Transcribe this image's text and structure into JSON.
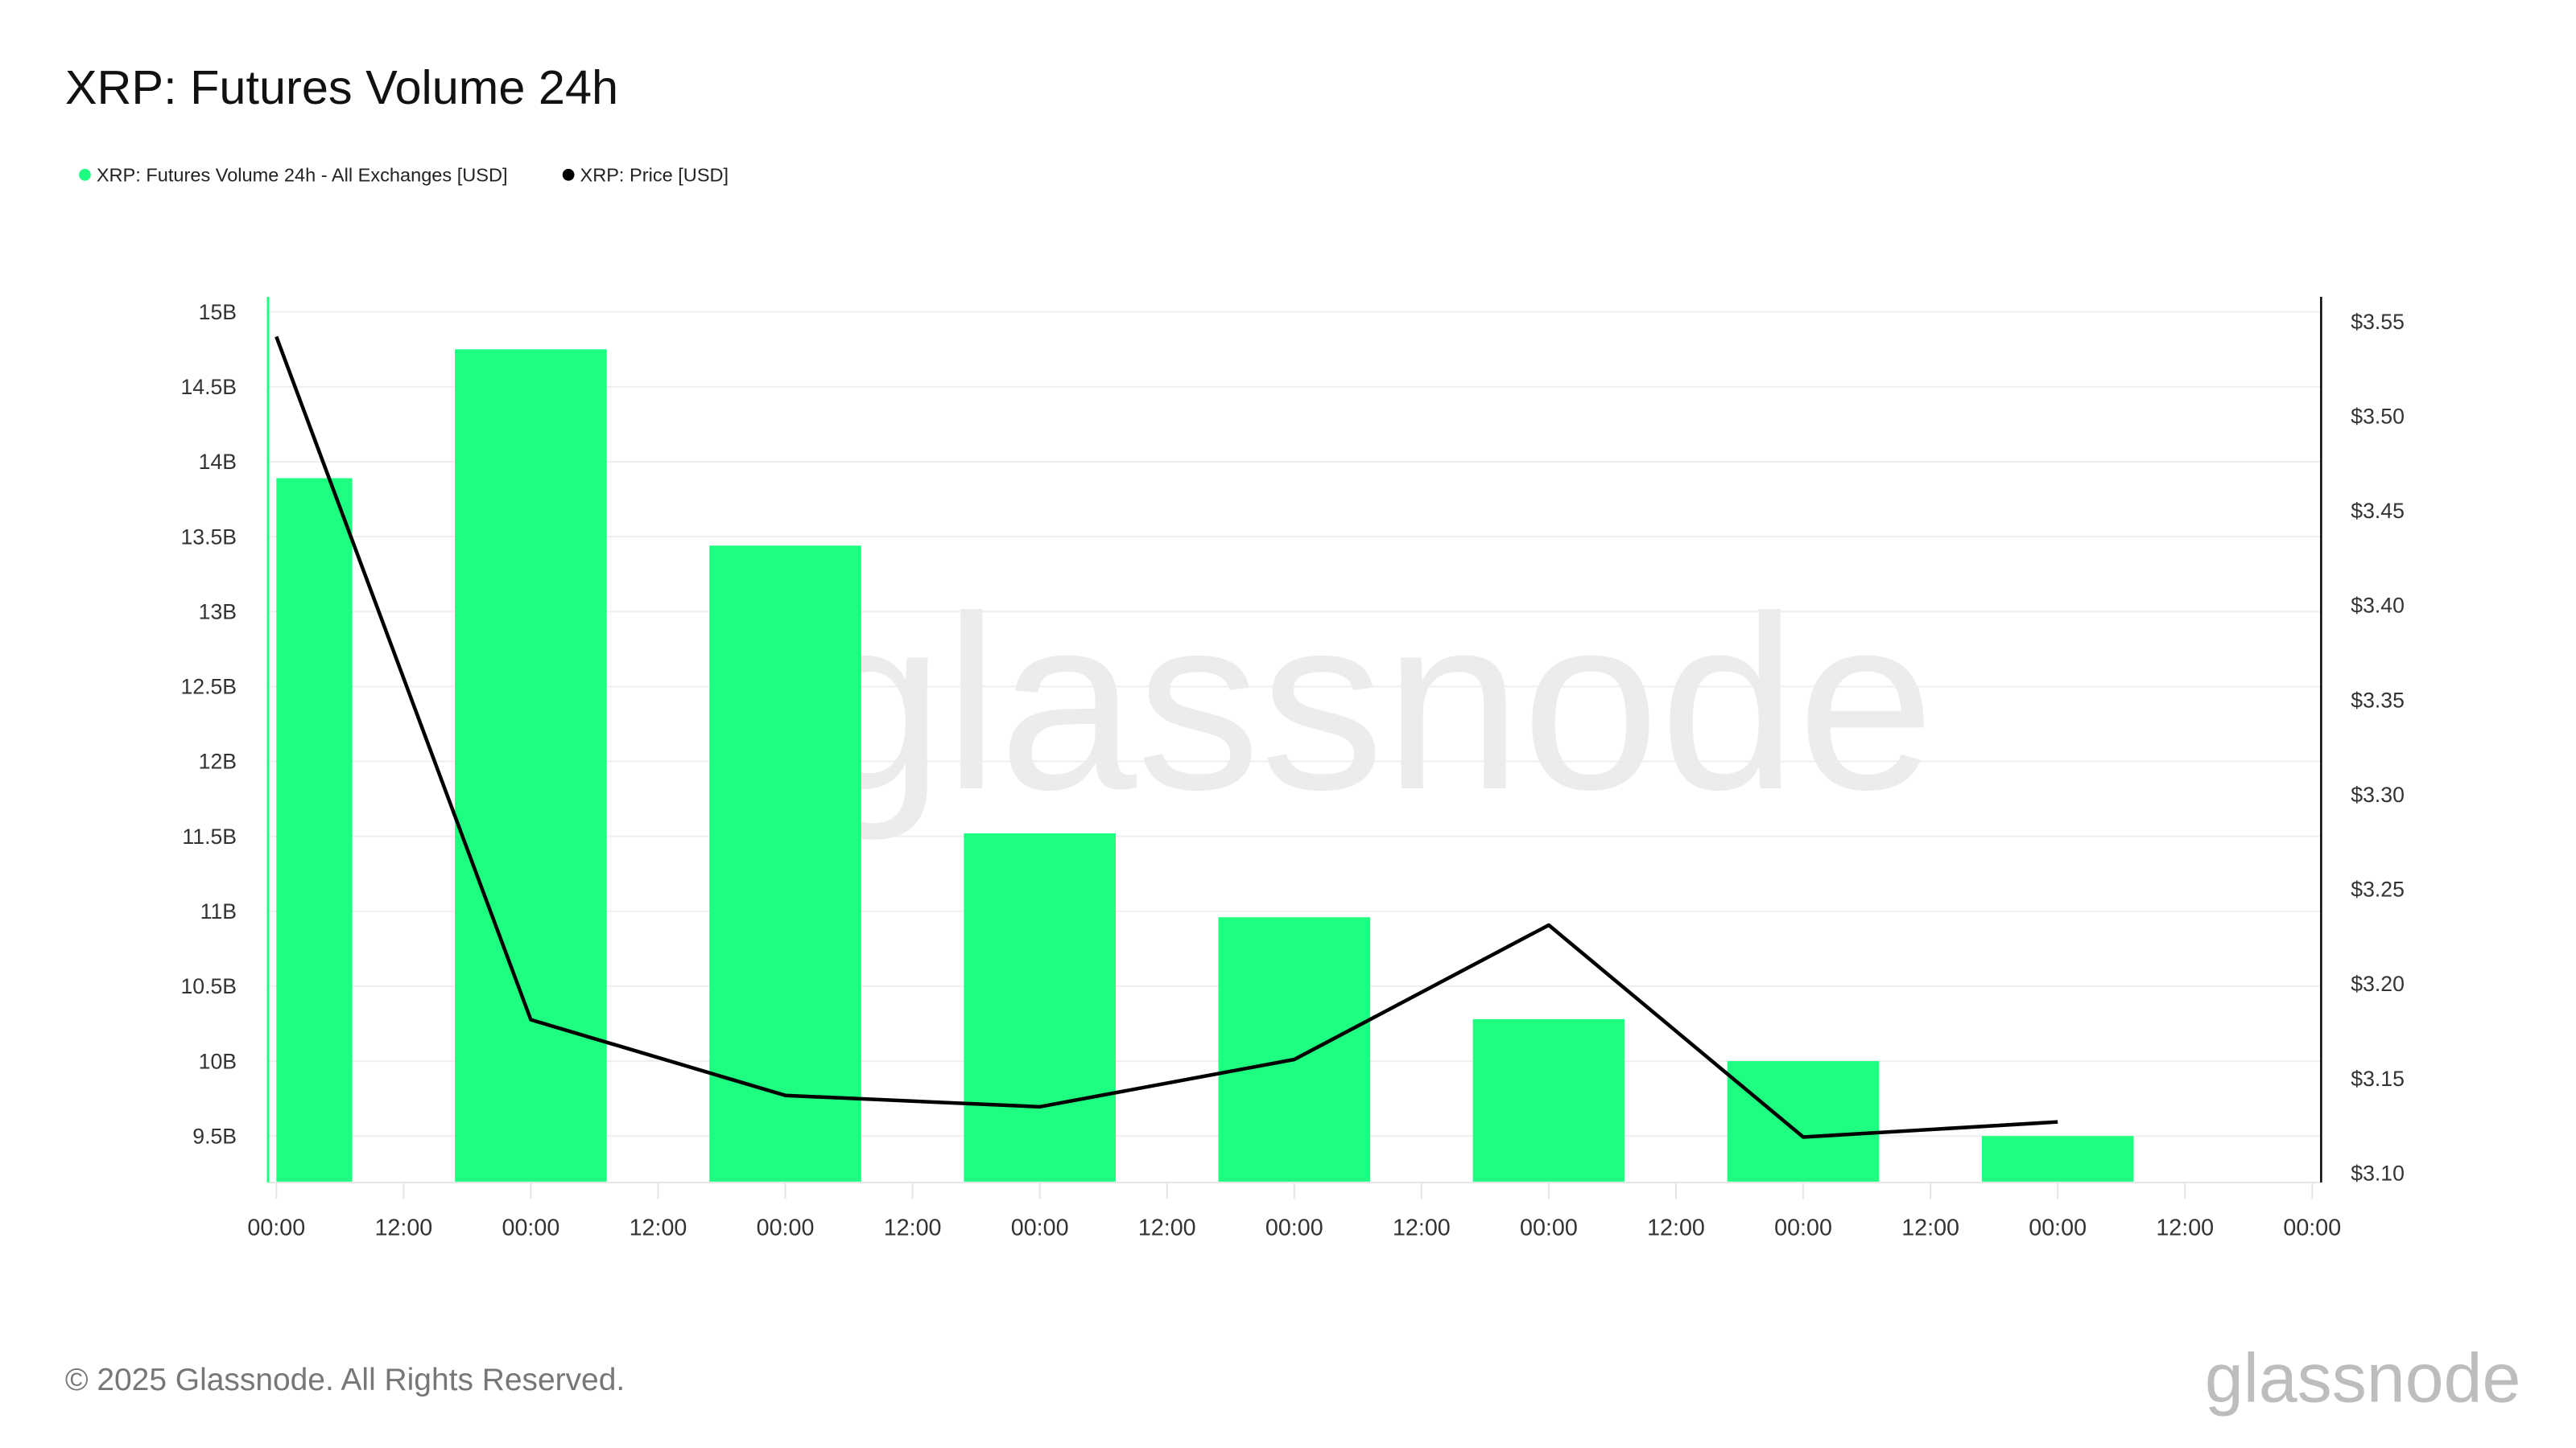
{
  "title": "XRP: Futures Volume 24h",
  "legend": [
    {
      "label": "XRP: Futures Volume 24h - All Exchanges [USD]",
      "color": "#1eff82"
    },
    {
      "label": "XRP: Price [USD]",
      "color": "#000000"
    }
  ],
  "footer": {
    "copyright": "© 2025 Glassnode. All Rights Reserved.",
    "logo": "glassnode"
  },
  "watermark": "glassnode",
  "chart_data": {
    "type": "bar+line",
    "title": "XRP: Futures Volume 24h",
    "x_tick_labels": [
      "00:00",
      "12:00",
      "00:00",
      "12:00",
      "00:00",
      "12:00",
      "00:00",
      "12:00",
      "00:00",
      "12:00",
      "00:00",
      "12:00",
      "00:00",
      "12:00",
      "00:00",
      "12:00",
      "00:00"
    ],
    "left_axis": {
      "ticks": [
        "15B",
        "14.5B",
        "14B",
        "13.5B",
        "13B",
        "12.5B",
        "12B",
        "11.5B",
        "11B",
        "10.5B",
        "10B",
        "9.5B"
      ],
      "tick_values": [
        15,
        14.5,
        14,
        13.5,
        13,
        12.5,
        12,
        11.5,
        11,
        10.5,
        10,
        9.5
      ],
      "range": [
        9.19,
        15.1
      ],
      "unit": "B USD"
    },
    "right_axis": {
      "ticks": [
        "$3.55",
        "$3.50",
        "$3.45",
        "$3.40",
        "$3.35",
        "$3.30",
        "$3.25",
        "$3.20",
        "$3.15",
        "$3.10"
      ],
      "tick_values": [
        3.55,
        3.5,
        3.45,
        3.4,
        3.35,
        3.3,
        3.25,
        3.2,
        3.15,
        3.1
      ],
      "range": [
        3.095,
        3.563
      ]
    },
    "x_range_days": [
      0,
      8
    ],
    "series": [
      {
        "name": "XRP: Futures Volume 24h - All Exchanges [USD]",
        "type": "bar",
        "axis": "left",
        "color": "#1eff82",
        "x_days": [
          0,
          1,
          2,
          3,
          4,
          5,
          6,
          7
        ],
        "values": [
          13.89,
          14.75,
          13.44,
          11.52,
          10.96,
          10.28,
          10.0,
          9.5
        ]
      },
      {
        "name": "XRP: Price [USD]",
        "type": "line",
        "axis": "right",
        "color": "#000000",
        "x_days": [
          0,
          1,
          2,
          3,
          4,
          5,
          6,
          7
        ],
        "values": [
          3.542,
          3.181,
          3.141,
          3.135,
          3.16,
          3.231,
          3.119,
          3.127
        ]
      }
    ],
    "grid": true,
    "legend_position": "top-left"
  }
}
